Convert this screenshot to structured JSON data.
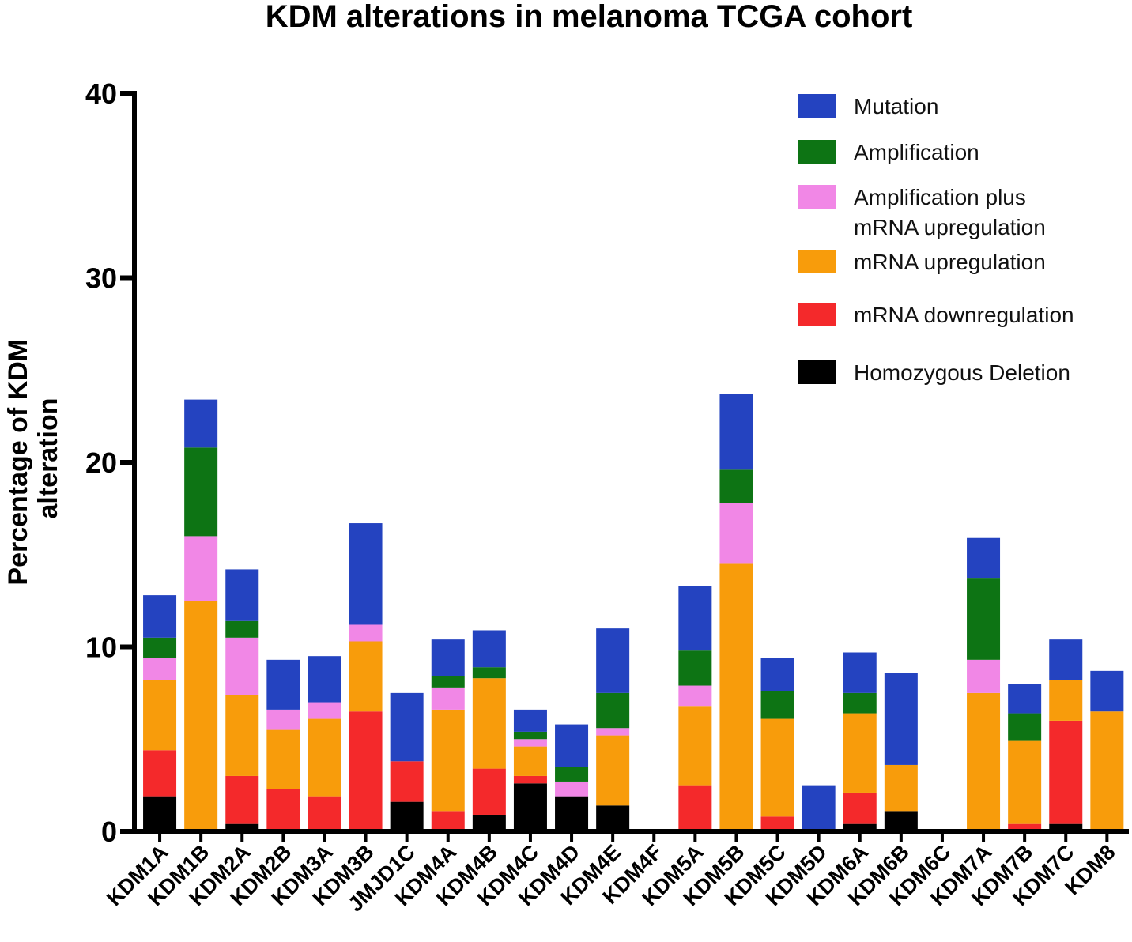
{
  "chart_data": {
    "type": "bar",
    "stacked": true,
    "title": "KDM alterations in melanoma TCGA cohort",
    "xlabel": "",
    "ylabel": "Percentage of KDM alteration",
    "ylabel_lines": [
      "Percentage of KDM",
      "alteration"
    ],
    "ylim": [
      0,
      40
    ],
    "yticks": [
      "0",
      "10",
      "20",
      "30",
      "40"
    ],
    "grid": false,
    "legend_position": "top-right",
    "categories": [
      "KDM1A",
      "KDM1B",
      "KDM2A",
      "KDM2B",
      "KDM3A",
      "KDM3B",
      "JMJD1C",
      "KDM4A",
      "KDM4B",
      "KDM4C",
      "KDM4D",
      "KDM4E",
      "KDM4F",
      "KDM5A",
      "KDM5B",
      "KDM5C",
      "KDM5D",
      "KDM6A",
      "KDM6B",
      "KDM6C",
      "KDM7A",
      "KDM7B",
      "KDM7C",
      "KDM8"
    ],
    "series": [
      {
        "name": "Homozygous Deletion",
        "color": "#000000",
        "values": [
          1.9,
          0,
          0.4,
          0,
          0,
          0,
          1.6,
          0,
          0.9,
          2.6,
          1.9,
          1.4,
          0,
          0,
          0,
          0,
          0,
          0.4,
          1.1,
          0,
          0,
          0,
          0.4,
          0
        ]
      },
      {
        "name": "mRNA downregulation",
        "color": "#f4292b",
        "values": [
          2.5,
          0,
          2.6,
          2.3,
          1.9,
          6.5,
          2.2,
          1.1,
          2.5,
          0.4,
          0,
          0,
          0,
          2.5,
          0,
          0.8,
          0,
          1.7,
          0,
          0,
          0,
          0.4,
          5.6,
          0
        ]
      },
      {
        "name": "mRNA upregulation",
        "color": "#f89c0b",
        "values": [
          3.8,
          12.5,
          4.4,
          3.2,
          4.2,
          3.8,
          0,
          5.5,
          4.9,
          1.6,
          0,
          3.8,
          0,
          4.3,
          14.5,
          5.3,
          0,
          4.3,
          2.5,
          0,
          7.5,
          4.5,
          2.2,
          6.5
        ]
      },
      {
        "name": "Amplification plus mRNA upregulation",
        "color": "#f187e6",
        "legend_lines": [
          "Amplification plus",
          "mRNA upregulation"
        ],
        "values": [
          1.2,
          3.5,
          3.1,
          1.1,
          0.9,
          0.9,
          0,
          1.2,
          0,
          0.4,
          0.8,
          0.4,
          0,
          1.1,
          3.3,
          0,
          0,
          0,
          0,
          0,
          1.8,
          0,
          0,
          0
        ]
      },
      {
        "name": "Amplification",
        "color": "#0d7414",
        "values": [
          1.1,
          4.8,
          0.9,
          0,
          0,
          0,
          0,
          0.6,
          0.6,
          0.4,
          0.8,
          1.9,
          0,
          1.9,
          1.8,
          1.5,
          0,
          1.1,
          0,
          0,
          4.4,
          1.5,
          0,
          0
        ]
      },
      {
        "name": "Mutation",
        "color": "#2443c0",
        "values": [
          2.3,
          2.6,
          2.8,
          2.7,
          2.5,
          5.5,
          3.7,
          2.0,
          2.0,
          1.2,
          2.3,
          3.5,
          0,
          3.5,
          4.1,
          1.8,
          2.5,
          2.2,
          5.0,
          0,
          2.2,
          1.6,
          2.2,
          2.2
        ]
      }
    ],
    "legend_order": [
      "Mutation",
      "Amplification",
      "Amplification plus mRNA upregulation",
      "mRNA upregulation",
      "mRNA downregulation",
      "Homozygous Deletion"
    ]
  }
}
